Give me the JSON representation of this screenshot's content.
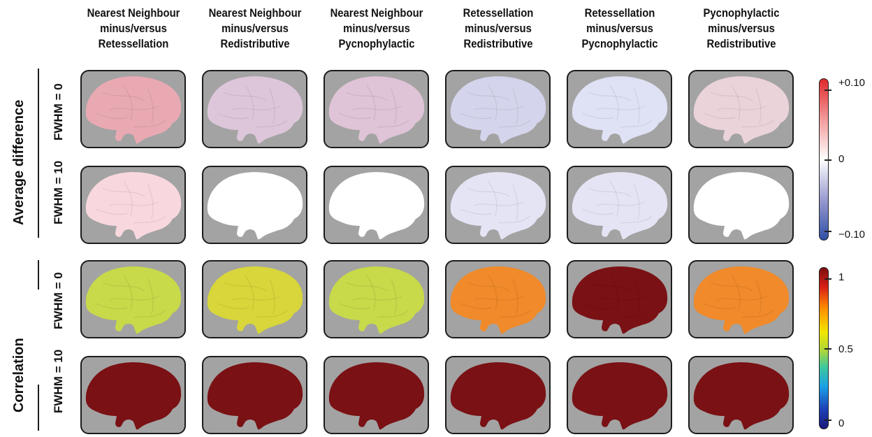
{
  "columns": [
    {
      "line1": "Nearest Neighbour",
      "line2": "minus/versus",
      "line3": "Retessellation"
    },
    {
      "line1": "Nearest Neighbour",
      "line2": "minus/versus",
      "line3": "Redistributive"
    },
    {
      "line1": "Nearest Neighbour",
      "line2": "minus/versus",
      "line3": "Pycnophylactic"
    },
    {
      "line1": "Retessellation",
      "line2": "minus/versus",
      "line3": "Redistributive"
    },
    {
      "line1": "Retessellation",
      "line2": "minus/versus",
      "line3": "Pycnophylactic"
    },
    {
      "line1": "Pycnophylactic",
      "line2": "minus/versus",
      "line3": "Redistributive"
    }
  ],
  "groups": {
    "average_difference": {
      "label": "Average difference",
      "rows": [
        {
          "label": "FWHM = 0"
        },
        {
          "label": "FWHM = 10"
        }
      ],
      "colorbar": {
        "colormap": "blue-white-red",
        "max_label": "+0.10",
        "mid_label": "0",
        "min_label": "−0.10"
      }
    },
    "correlation": {
      "label": "Correlation",
      "rows": [
        {
          "label": "FWHM = 0"
        },
        {
          "label": "FWHM = 10"
        }
      ],
      "colorbar": {
        "colormap": "jet",
        "max_label": "1",
        "mid_label": "0.5",
        "min_label": "0"
      }
    }
  },
  "panel_fills": {
    "avg_fwhm0": [
      "#e9a9b3",
      "#ddc6da",
      "#dfc3d6",
      "#d4d4ec",
      "#dfe1f5",
      "#ebd3da"
    ],
    "avg_fwhm10": [
      "#f8d8de",
      "#ffffff",
      "#ffffff",
      "#e4e4f5",
      "#e4e4f5",
      "#ffffff"
    ],
    "corr_fwhm0": [
      "#c8d94a",
      "#d8d63a",
      "#c8d94a",
      "#f08a2a",
      "#7a1114",
      "#f08a2a"
    ],
    "corr_fwhm10": [
      "#7a1114",
      "#7a1114",
      "#7a1114",
      "#7a1114",
      "#7a1114",
      "#7a1114"
    ]
  }
}
